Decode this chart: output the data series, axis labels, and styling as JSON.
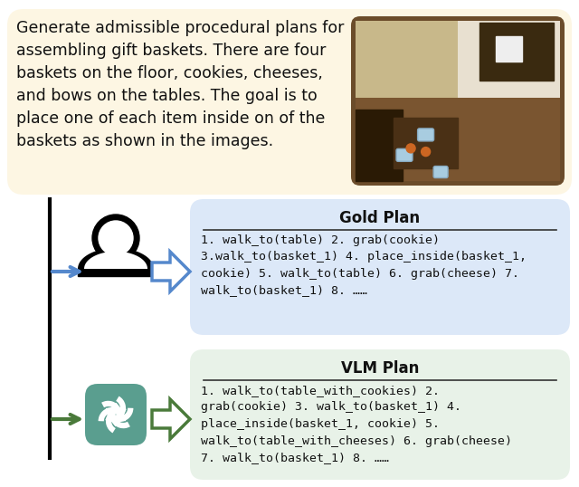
{
  "top_box_color": "#fdf6e3",
  "top_box_text": "Generate admissible procedural plans for\nassembling gift baskets. There are four\nbaskets on the floor, cookies, cheeses,\nand bows on the tables. The goal is to\nplace one of each item inside on of the\nbaskets as shown in the images.",
  "gold_box_color": "#dce8f8",
  "gold_box_title": "Gold Plan",
  "gold_box_text": "1. walk_to(table) 2. grab(cookie)\n3.walk_to(basket_1) 4. place_inside(basket_1,\ncookie) 5. walk_to(table) 6. grab(cheese) 7.\nwalk_to(basket_1) 8. ……",
  "vlm_box_color": "#e8f2e8",
  "vlm_box_title": "VLM Plan",
  "vlm_box_text": "1. walk_to(table_with_cookies) 2.\ngrab(cookie) 3. walk_to(basket_1) 4.\nplace_inside(basket_1, cookie) 5.\nwalk_to(table_with_cheeses) 6. grab(cheese)\n7. walk_to(basket_1) 8. ……",
  "blue_arrow_color": "#5588cc",
  "green_arrow_color": "#4a7a3a",
  "person_color": "#111111",
  "openai_icon_color": "#5a9e8f",
  "background_color": "#ffffff",
  "font_size_body": 9.5,
  "font_size_title": 12,
  "font_size_top_text": 12.5
}
